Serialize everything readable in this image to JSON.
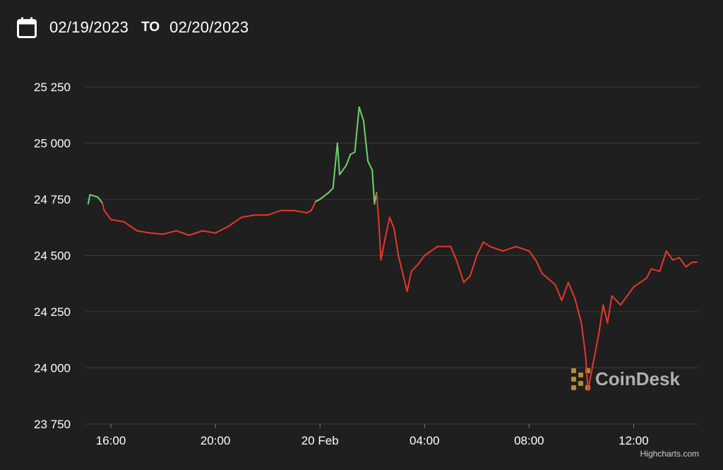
{
  "header": {
    "icon": "calendar-icon",
    "from_date": "02/19/2023",
    "to_label": "TO",
    "to_date": "02/20/2023"
  },
  "watermark": {
    "text": "CoinDesk",
    "icon": "coindesk-logo-icon"
  },
  "credit": "Highcharts.com",
  "colors": {
    "background": "#1f1f1f",
    "up": "#6cd46a",
    "down": "#e8372b",
    "grid": "#3a3a3a",
    "text": "#ffffff"
  },
  "chart_data": {
    "type": "line",
    "title": "",
    "xlabel": "",
    "ylabel": "",
    "ylim": [
      23750,
      25250
    ],
    "yticks": [
      23750,
      24000,
      24250,
      24500,
      24750,
      25000,
      25250
    ],
    "ytick_labels": [
      "23 750",
      "24 000",
      "24 250",
      "24 500",
      "24 750",
      "25 000",
      "25 250"
    ],
    "xlim": [
      "2023-02-19 15:00",
      "2023-02-20 14:30"
    ],
    "xticks": [
      "2023-02-19 16:00",
      "2023-02-19 20:00",
      "2023-02-20 00:00",
      "2023-02-20 04:00",
      "2023-02-20 08:00",
      "2023-02-20 12:00"
    ],
    "xtick_labels": [
      "16:00",
      "20:00",
      "20 Feb",
      "04:00",
      "08:00",
      "12:00"
    ],
    "grid": true,
    "legend": "none",
    "series": [
      {
        "color_rule": "green while at or above the 24730 opening level, red below",
        "reference": 24730,
        "points": [
          [
            "2023-02-19 15:08",
            24730
          ],
          [
            "2023-02-19 15:12",
            24770
          ],
          [
            "2023-02-19 15:30",
            24760
          ],
          [
            "2023-02-19 15:40",
            24735
          ],
          [
            "2023-02-19 15:45",
            24700
          ],
          [
            "2023-02-19 16:00",
            24660
          ],
          [
            "2023-02-19 16:30",
            24650
          ],
          [
            "2023-02-19 17:00",
            24610
          ],
          [
            "2023-02-19 17:30",
            24600
          ],
          [
            "2023-02-19 18:00",
            24595
          ],
          [
            "2023-02-19 18:30",
            24610
          ],
          [
            "2023-02-19 19:00",
            24590
          ],
          [
            "2023-02-19 19:30",
            24610
          ],
          [
            "2023-02-19 20:00",
            24600
          ],
          [
            "2023-02-19 20:30",
            24630
          ],
          [
            "2023-02-19 21:00",
            24670
          ],
          [
            "2023-02-19 21:30",
            24680
          ],
          [
            "2023-02-19 22:00",
            24680
          ],
          [
            "2023-02-19 22:30",
            24700
          ],
          [
            "2023-02-19 23:00",
            24700
          ],
          [
            "2023-02-19 23:30",
            24690
          ],
          [
            "2023-02-19 23:40",
            24700
          ],
          [
            "2023-02-19 23:50",
            24740
          ],
          [
            "2023-02-20 00:00",
            24750
          ],
          [
            "2023-02-20 00:20",
            24780
          ],
          [
            "2023-02-20 00:30",
            24800
          ],
          [
            "2023-02-20 00:40",
            25000
          ],
          [
            "2023-02-20 00:45",
            24860
          ],
          [
            "2023-02-20 01:00",
            24900
          ],
          [
            "2023-02-20 01:10",
            24950
          ],
          [
            "2023-02-20 01:20",
            24960
          ],
          [
            "2023-02-20 01:30",
            25160
          ],
          [
            "2023-02-20 01:40",
            25100
          ],
          [
            "2023-02-20 01:50",
            24920
          ],
          [
            "2023-02-20 02:00",
            24880
          ],
          [
            "2023-02-20 02:05",
            24730
          ],
          [
            "2023-02-20 02:10",
            24780
          ],
          [
            "2023-02-20 02:15",
            24650
          ],
          [
            "2023-02-20 02:20",
            24480
          ],
          [
            "2023-02-20 02:30",
            24580
          ],
          [
            "2023-02-20 02:40",
            24670
          ],
          [
            "2023-02-20 02:50",
            24620
          ],
          [
            "2023-02-20 03:00",
            24500
          ],
          [
            "2023-02-20 03:10",
            24420
          ],
          [
            "2023-02-20 03:20",
            24340
          ],
          [
            "2023-02-20 03:30",
            24430
          ],
          [
            "2023-02-20 03:45",
            24460
          ],
          [
            "2023-02-20 04:00",
            24500
          ],
          [
            "2023-02-20 04:30",
            24540
          ],
          [
            "2023-02-20 05:00",
            24540
          ],
          [
            "2023-02-20 05:15",
            24470
          ],
          [
            "2023-02-20 05:30",
            24380
          ],
          [
            "2023-02-20 05:45",
            24410
          ],
          [
            "2023-02-20 06:00",
            24500
          ],
          [
            "2023-02-20 06:15",
            24560
          ],
          [
            "2023-02-20 06:30",
            24540
          ],
          [
            "2023-02-20 07:00",
            24520
          ],
          [
            "2023-02-20 07:30",
            24540
          ],
          [
            "2023-02-20 08:00",
            24520
          ],
          [
            "2023-02-20 08:15",
            24480
          ],
          [
            "2023-02-20 08:30",
            24420
          ],
          [
            "2023-02-20 09:00",
            24370
          ],
          [
            "2023-02-20 09:15",
            24300
          ],
          [
            "2023-02-20 09:30",
            24380
          ],
          [
            "2023-02-20 09:45",
            24310
          ],
          [
            "2023-02-20 10:00",
            24200
          ],
          [
            "2023-02-20 10:10",
            24050
          ],
          [
            "2023-02-20 10:15",
            23900
          ],
          [
            "2023-02-20 10:25",
            24000
          ],
          [
            "2023-02-20 10:40",
            24150
          ],
          [
            "2023-02-20 10:50",
            24280
          ],
          [
            "2023-02-20 11:00",
            24200
          ],
          [
            "2023-02-20 11:10",
            24320
          ],
          [
            "2023-02-20 11:30",
            24280
          ],
          [
            "2023-02-20 12:00",
            24360
          ],
          [
            "2023-02-20 12:30",
            24400
          ],
          [
            "2023-02-20 12:40",
            24440
          ],
          [
            "2023-02-20 13:00",
            24430
          ],
          [
            "2023-02-20 13:15",
            24520
          ],
          [
            "2023-02-20 13:30",
            24480
          ],
          [
            "2023-02-20 13:45",
            24490
          ],
          [
            "2023-02-20 14:00",
            24450
          ],
          [
            "2023-02-20 14:15",
            24470
          ],
          [
            "2023-02-20 14:25",
            24470
          ]
        ]
      }
    ]
  }
}
